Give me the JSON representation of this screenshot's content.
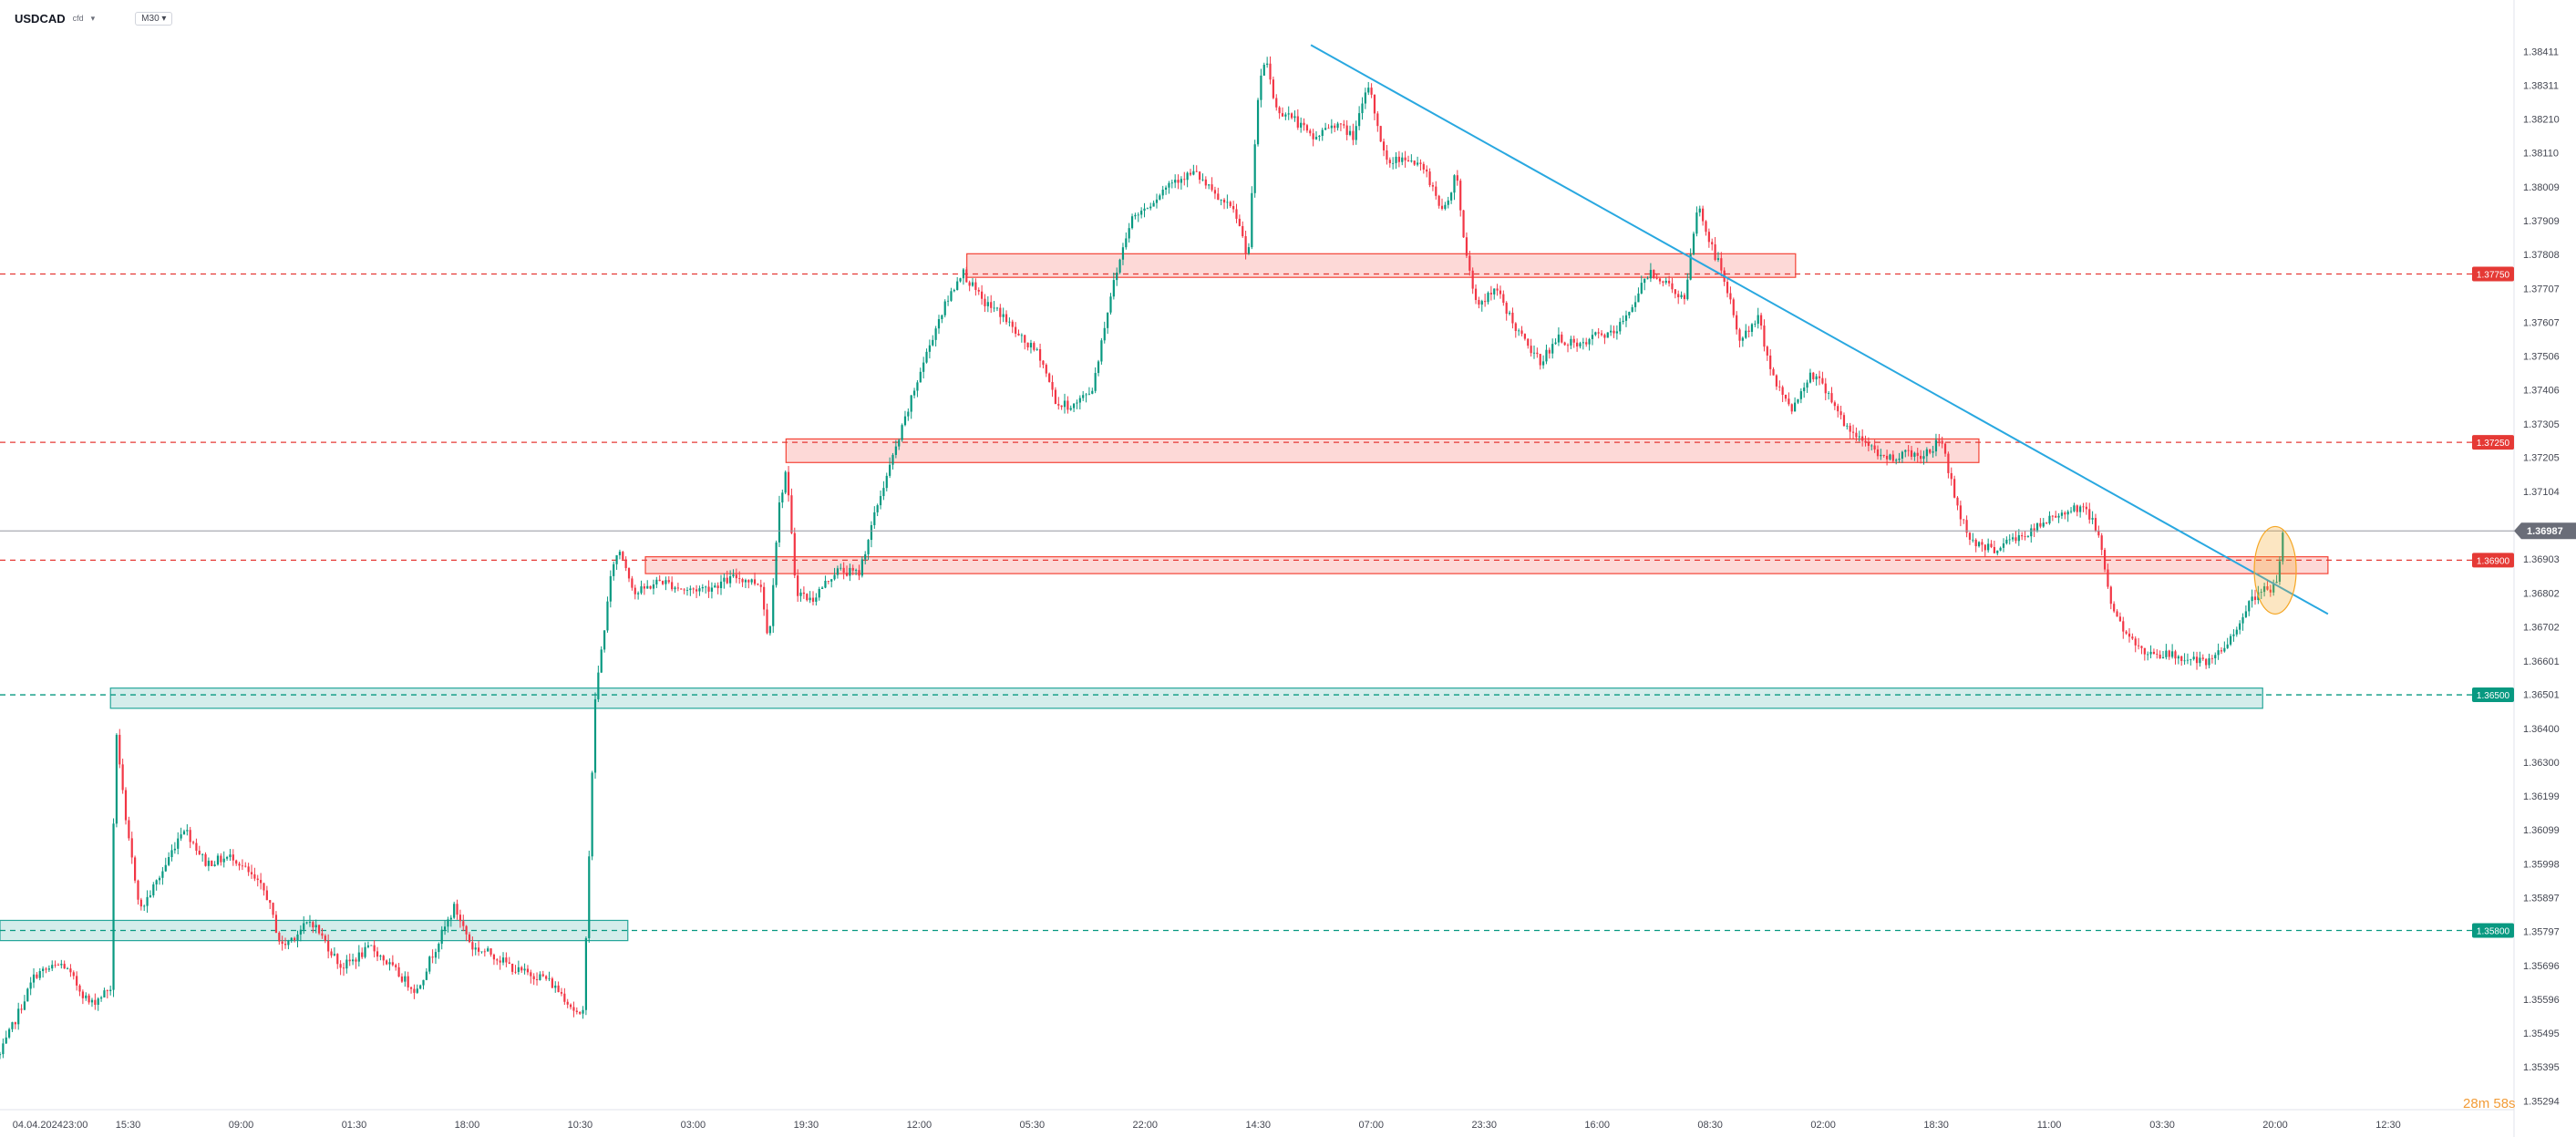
{
  "header": {
    "symbol": "USDCAD",
    "suffix": "cfd",
    "timeframe": "M30"
  },
  "chart_data": {
    "type": "candlestick",
    "symbol": "USDCAD",
    "timeframe": "M30",
    "y_range": [
      1.35295,
      1.3845
    ],
    "y_ticks": [
      "1.38411",
      "1.38311",
      "1.38210",
      "1.38110",
      "1.38009",
      "1.37909",
      "1.37808",
      "1.37707",
      "1.37607",
      "1.37506",
      "1.37406",
      "1.37305",
      "1.37205",
      "1.37104",
      "1.36903",
      "1.36802",
      "1.36702",
      "1.36601",
      "1.36501",
      "1.36400",
      "1.36300",
      "1.36199",
      "1.36099",
      "1.35998",
      "1.35897",
      "1.35797",
      "1.35696",
      "1.35596",
      "1.35495",
      "1.35395",
      "1.35294"
    ],
    "x_range": [
      0,
      100
    ],
    "x_ticks": [
      {
        "label": "04.04.2024",
        "x": 1.5
      },
      {
        "label": "23:00",
        "x": 3.0
      },
      {
        "label": "15:30",
        "x": 5.1
      },
      {
        "label": "09:00",
        "x": 9.6
      },
      {
        "label": "01:30",
        "x": 14.1
      },
      {
        "label": "18:00",
        "x": 18.6
      },
      {
        "label": "10:30",
        "x": 23.1
      },
      {
        "label": "03:00",
        "x": 27.6
      },
      {
        "label": "19:30",
        "x": 32.1
      },
      {
        "label": "12:00",
        "x": 36.6
      },
      {
        "label": "05:30",
        "x": 41.1
      },
      {
        "label": "22:00",
        "x": 45.6
      },
      {
        "label": "14:30",
        "x": 50.1
      },
      {
        "label": "07:00",
        "x": 54.6
      },
      {
        "label": "23:30",
        "x": 59.1
      },
      {
        "label": "16:00",
        "x": 63.6
      },
      {
        "label": "08:30",
        "x": 68.1
      },
      {
        "label": "02:00",
        "x": 72.6
      },
      {
        "label": "18:30",
        "x": 77.1
      },
      {
        "label": "11:00",
        "x": 81.6
      },
      {
        "label": "03:30",
        "x": 86.1
      },
      {
        "label": "20:00",
        "x": 90.6
      },
      {
        "label": "12:30",
        "x": 95.1
      }
    ],
    "last_price": "1.36987",
    "price_anchors": [
      [
        0.0,
        1.3543
      ],
      [
        1.4,
        1.3567
      ],
      [
        2.5,
        1.357
      ],
      [
        3.6,
        1.3558
      ],
      [
        4.4,
        1.3563
      ],
      [
        4.6,
        1.3642
      ],
      [
        5.0,
        1.3612
      ],
      [
        5.6,
        1.3586
      ],
      [
        6.5,
        1.3598
      ],
      [
        7.3,
        1.3611
      ],
      [
        8.2,
        1.36
      ],
      [
        9.3,
        1.3602
      ],
      [
        10.6,
        1.3591
      ],
      [
        11.2,
        1.3575
      ],
      [
        12.4,
        1.3583
      ],
      [
        13.6,
        1.3569
      ],
      [
        14.8,
        1.3575
      ],
      [
        16.0,
        1.3566
      ],
      [
        16.6,
        1.3562
      ],
      [
        17.1,
        1.3571
      ],
      [
        18.1,
        1.3587
      ],
      [
        18.8,
        1.3575
      ],
      [
        19.6,
        1.3573
      ],
      [
        20.6,
        1.3568
      ],
      [
        21.7,
        1.3566
      ],
      [
        22.4,
        1.3561
      ],
      [
        23.2,
        1.3553
      ],
      [
        23.7,
        1.3649
      ],
      [
        24.4,
        1.3689
      ],
      [
        24.7,
        1.3693
      ],
      [
        25.3,
        1.368
      ],
      [
        26.3,
        1.3684
      ],
      [
        27.3,
        1.3681
      ],
      [
        28.3,
        1.3682
      ],
      [
        29.3,
        1.3685
      ],
      [
        30.3,
        1.3683
      ],
      [
        30.6,
        1.3665
      ],
      [
        31.0,
        1.3705
      ],
      [
        31.3,
        1.3717
      ],
      [
        31.7,
        1.3681
      ],
      [
        32.3,
        1.3678
      ],
      [
        33.3,
        1.3687
      ],
      [
        34.2,
        1.3686
      ],
      [
        35.0,
        1.3708
      ],
      [
        35.8,
        1.3726
      ],
      [
        36.6,
        1.3745
      ],
      [
        37.4,
        1.3762
      ],
      [
        38.3,
        1.3776
      ],
      [
        39.1,
        1.3767
      ],
      [
        39.9,
        1.3763
      ],
      [
        40.6,
        1.3756
      ],
      [
        41.4,
        1.3751
      ],
      [
        42.1,
        1.3736
      ],
      [
        42.8,
        1.3736
      ],
      [
        43.5,
        1.3741
      ],
      [
        44.2,
        1.3768
      ],
      [
        45.0,
        1.3791
      ],
      [
        45.8,
        1.3796
      ],
      [
        46.7,
        1.3803
      ],
      [
        47.6,
        1.3805
      ],
      [
        48.4,
        1.3798
      ],
      [
        49.2,
        1.3793
      ],
      [
        49.7,
        1.378
      ],
      [
        50.1,
        1.3828
      ],
      [
        50.4,
        1.384
      ],
      [
        50.8,
        1.3824
      ],
      [
        51.4,
        1.3822
      ],
      [
        52.3,
        1.3815
      ],
      [
        53.1,
        1.382
      ],
      [
        53.9,
        1.3816
      ],
      [
        54.5,
        1.3831
      ],
      [
        55.2,
        1.3808
      ],
      [
        56.0,
        1.381
      ],
      [
        56.8,
        1.3805
      ],
      [
        57.5,
        1.3793
      ],
      [
        58.0,
        1.3806
      ],
      [
        58.3,
        1.3784
      ],
      [
        58.8,
        1.3766
      ],
      [
        59.6,
        1.377
      ],
      [
        60.5,
        1.3757
      ],
      [
        61.3,
        1.3749
      ],
      [
        62.1,
        1.3756
      ],
      [
        62.9,
        1.3753
      ],
      [
        63.6,
        1.3757
      ],
      [
        64.3,
        1.3757
      ],
      [
        65.0,
        1.3766
      ],
      [
        65.7,
        1.3776
      ],
      [
        66.4,
        1.3772
      ],
      [
        67.1,
        1.3767
      ],
      [
        67.6,
        1.3796
      ],
      [
        68.0,
        1.3786
      ],
      [
        68.6,
        1.3775
      ],
      [
        69.3,
        1.3755
      ],
      [
        70.0,
        1.3762
      ],
      [
        70.7,
        1.3742
      ],
      [
        71.4,
        1.3735
      ],
      [
        72.1,
        1.3746
      ],
      [
        72.8,
        1.374
      ],
      [
        73.6,
        1.3728
      ],
      [
        74.3,
        1.3725
      ],
      [
        75.1,
        1.372
      ],
      [
        75.9,
        1.3722
      ],
      [
        76.6,
        1.3721
      ],
      [
        77.3,
        1.3726
      ],
      [
        78.0,
        1.3704
      ],
      [
        78.5,
        1.3696
      ],
      [
        79.3,
        1.3693
      ],
      [
        80.1,
        1.3696
      ],
      [
        80.8,
        1.3698
      ],
      [
        81.6,
        1.3702
      ],
      [
        82.3,
        1.3705
      ],
      [
        83.0,
        1.3706
      ],
      [
        83.6,
        1.3697
      ],
      [
        84.1,
        1.3676
      ],
      [
        84.8,
        1.3666
      ],
      [
        85.4,
        1.3663
      ],
      [
        86.2,
        1.3662
      ],
      [
        87.0,
        1.3661
      ],
      [
        87.9,
        1.3659
      ],
      [
        88.7,
        1.3665
      ],
      [
        89.3,
        1.3674
      ],
      [
        89.8,
        1.3679
      ],
      [
        90.2,
        1.3681
      ],
      [
        90.6,
        1.3682
      ],
      [
        90.9,
        1.3697
      ]
    ],
    "price_levels": [
      {
        "value": 1.3775,
        "label": "1.37750",
        "color": "#e53935",
        "style": "dashed"
      },
      {
        "value": 1.3725,
        "label": "1.37250",
        "color": "#e53935",
        "style": "dashed"
      },
      {
        "value": 1.369,
        "label": "1.36900",
        "color": "#e53935",
        "style": "dashed"
      },
      {
        "value": 1.365,
        "label": "1.36500",
        "color": "#089981",
        "style": "dashed"
      },
      {
        "value": 1.358,
        "label": "1.35800",
        "color": "#089981",
        "style": "dashed"
      }
    ],
    "zones": [
      {
        "x_start": 38.5,
        "x_end": 71.5,
        "y_low": 1.3774,
        "y_high": 1.3781,
        "color": "#f44336"
      },
      {
        "x_start": 31.3,
        "x_end": 78.8,
        "y_low": 1.3719,
        "y_high": 1.3726,
        "color": "#f44336"
      },
      {
        "x_start": 25.7,
        "x_end": 92.7,
        "y_low": 1.3686,
        "y_high": 1.3691,
        "color": "#f44336"
      },
      {
        "x_start": 4.4,
        "x_end": 90.1,
        "y_low": 1.3646,
        "y_high": 1.3652,
        "color": "#26a69a"
      },
      {
        "x_start": 0.0,
        "x_end": 25.0,
        "y_low": 1.3577,
        "y_high": 1.3583,
        "color": "#26a69a"
      }
    ],
    "trendline": {
      "x1": 52.2,
      "y1": 1.3843,
      "x2": 92.7,
      "y2": 1.3674,
      "color": "#29a8e0"
    },
    "highlight": {
      "x": 90.6,
      "y": 1.3687,
      "color": "#f5a623"
    },
    "countdown": {
      "minutes": "28",
      "seconds": "58",
      "color": "#f29c38"
    }
  }
}
